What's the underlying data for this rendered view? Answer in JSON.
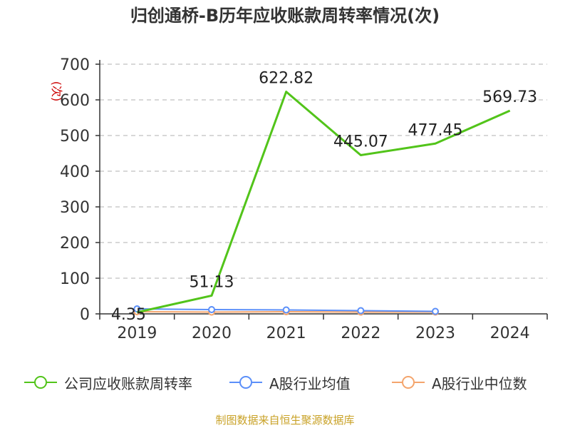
{
  "title": "归创通桥-B历年应收账款周转率情况(次)",
  "source": "制图数据来自恒生聚源数据库",
  "colors": {
    "green": "#52c41a",
    "blue": "#5b8ff9",
    "orange": "#f4a56d",
    "axis": "#333333",
    "grid": "#cccccc",
    "unit": "#cc0000"
  },
  "chart_data": {
    "type": "line",
    "title": "归创通桥-B历年应收账款周转率情况(次)",
    "ylabel": "(次)",
    "xlabel": "",
    "categories": [
      "2019",
      "2020",
      "2021",
      "2022",
      "2023",
      "2024"
    ],
    "ylim": [
      0,
      700
    ],
    "yticks": [
      0,
      100,
      200,
      300,
      400,
      500,
      600,
      700
    ],
    "grid": true,
    "legend_position": "bottom",
    "series": [
      {
        "name": "公司应收账款周转率",
        "color": "#52c41a",
        "values": [
          4.35,
          51.13,
          622.82,
          445.07,
          477.45,
          569.73
        ],
        "labels": [
          "4.35",
          "51.13",
          "622.82",
          "445.07",
          "477.45",
          "569.73"
        ]
      },
      {
        "name": "A股行业均值",
        "color": "#5b8ff9",
        "values": [
          14,
          12,
          11,
          9,
          7,
          null
        ]
      },
      {
        "name": "A股行业中位数",
        "color": "#f4a56d",
        "values": [
          6,
          5,
          6,
          5,
          5,
          null
        ]
      }
    ]
  }
}
